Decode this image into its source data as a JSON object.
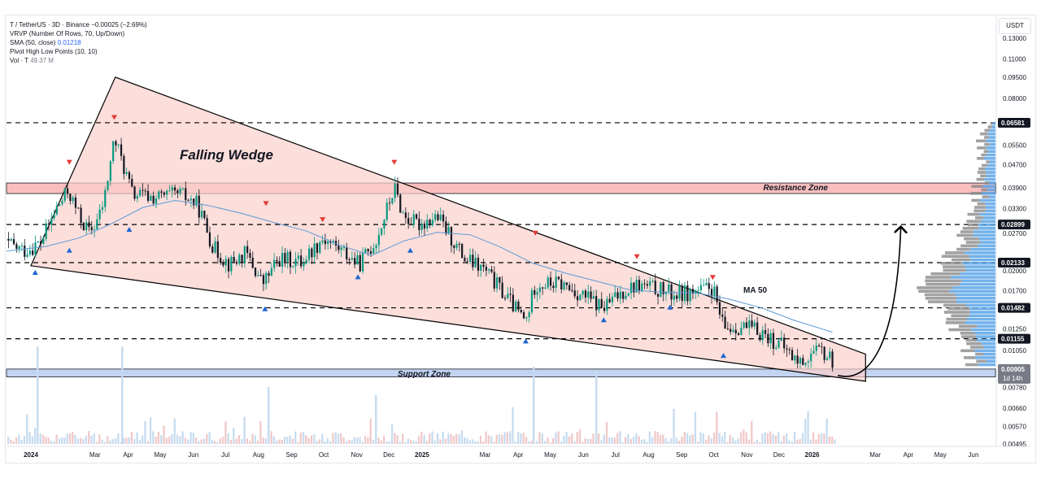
{
  "legend": {
    "symbol_line": "T / TetherUS · 3D · Binance",
    "change": "−0.00025 (−2.69%)",
    "vrvp": "VRVP (Number Of Rows, 70, Up/Down)",
    "sma_label": "SMA (50, close)",
    "sma_value": "0.01218",
    "pivot": "Pivot High Low Points (10, 10)",
    "vol_label": "Vol · T",
    "vol_value": "49.37 M"
  },
  "currency_label": "USDT",
  "colors": {
    "up": "#089981",
    "down": "#131722",
    "wedge_fill": "#fbd0cc",
    "resistance_fill": "#f7a8a8",
    "support_fill": "#b9cdf0",
    "sma": "#5b9bd5",
    "pivot_high": "#e53935",
    "pivot_low": "#1e64d2",
    "price_tag": "#131722",
    "last_price_tag": "#787b86"
  },
  "chart_data": {
    "type": "candlestick",
    "log_scale": true,
    "y_axis": {
      "ticks": [
        "0.13000",
        "0.11000",
        "0.09500",
        "0.08000",
        "0.05500",
        "0.04700",
        "0.03900",
        "0.03300",
        "0.02700",
        "0.02000",
        "0.01700",
        "0.01250",
        "0.01050",
        "0.00780",
        "0.00660",
        "0.00570",
        "0.00495"
      ],
      "tick_values": [
        0.13,
        0.11,
        0.095,
        0.08,
        0.055,
        0.047,
        0.039,
        0.033,
        0.027,
        0.02,
        0.017,
        0.0125,
        0.0105,
        0.0078,
        0.0066,
        0.0057,
        0.00495
      ]
    },
    "x_axis": {
      "ticks": [
        "2024",
        "Mar",
        "Apr",
        "May",
        "Jun",
        "Jul",
        "Aug",
        "Sep",
        "Oct",
        "Nov",
        "Dec",
        "2025",
        "Mar",
        "Apr",
        "May",
        "Jun",
        "Jul",
        "Aug",
        "Sep",
        "Oct",
        "Nov",
        "Dec",
        "2026",
        "Mar",
        "Apr",
        "May",
        "Jun"
      ],
      "tick_dates": [
        "2024-01-01",
        "2024-03-01",
        "2024-04-01",
        "2024-05-01",
        "2024-06-01",
        "2024-07-01",
        "2024-08-01",
        "2024-09-01",
        "2024-10-01",
        "2024-11-01",
        "2024-12-01",
        "2025-01-01",
        "2025-03-01",
        "2025-04-01",
        "2025-05-01",
        "2025-06-01",
        "2025-07-01",
        "2025-08-01",
        "2025-09-01",
        "2025-10-01",
        "2025-11-01",
        "2025-12-01",
        "2026-01-01",
        "2026-03-01",
        "2026-04-01",
        "2026-05-01",
        "2026-06-01"
      ]
    },
    "horizontal_levels": [
      {
        "label": "0.06581",
        "value": 0.06581
      },
      {
        "label": "0.02899",
        "value": 0.02899
      },
      {
        "label": "0.02133",
        "value": 0.02133
      },
      {
        "label": "0.01482",
        "value": 0.01482
      },
      {
        "label": "0.01155",
        "value": 0.01155
      },
      {
        "label": "0.00905",
        "value": 0.00905
      }
    ],
    "last_price": {
      "label": "0.00905",
      "countdown": "1d 14h"
    },
    "zones": {
      "resistance": {
        "label": "Resistance Zone",
        "low": 0.0372,
        "high": 0.0405
      },
      "support": {
        "label": "Support Zone",
        "low": 0.0085,
        "high": 0.00905
      }
    },
    "annotations": {
      "pattern": "Falling Wedge",
      "ma": "MA 50"
    },
    "wedge": {
      "upper": [
        {
          "date": "2024-01-01",
          "price": 0.0208
        },
        {
          "date": "2024-03-20",
          "price": 0.095
        },
        {
          "date": "2026-02-20",
          "price": 0.0102
        }
      ],
      "lower": [
        {
          "date": "2024-01-01",
          "price": 0.0208
        },
        {
          "date": "2026-02-20",
          "price": 0.0082
        }
      ]
    },
    "pivot_highs": [
      {
        "date": "2024-02-06",
        "price": 0.046
      },
      {
        "date": "2024-03-19",
        "price": 0.066
      },
      {
        "date": "2024-08-08",
        "price": 0.033
      },
      {
        "date": "2024-09-30",
        "price": 0.029
      },
      {
        "date": "2024-12-06",
        "price": 0.046
      },
      {
        "date": "2025-04-17",
        "price": 0.026
      },
      {
        "date": "2025-07-21",
        "price": 0.0215
      },
      {
        "date": "2025-09-30",
        "price": 0.0182
      }
    ],
    "pivot_lows": [
      {
        "date": "2024-01-05",
        "price": 0.0205
      },
      {
        "date": "2024-02-06",
        "price": 0.0245
      },
      {
        "date": "2024-04-02",
        "price": 0.029
      },
      {
        "date": "2024-08-07",
        "price": 0.0153
      },
      {
        "date": "2024-11-02",
        "price": 0.0198
      },
      {
        "date": "2024-12-21",
        "price": 0.0245
      },
      {
        "date": "2025-04-08",
        "price": 0.0118
      },
      {
        "date": "2025-06-20",
        "price": 0.014
      },
      {
        "date": "2025-08-21",
        "price": 0.0155
      },
      {
        "date": "2025-10-10",
        "price": 0.0105
      }
    ],
    "ohlc_outline": [
      [
        "2023-12-01",
        0.0255
      ],
      [
        "2023-12-25",
        0.0235
      ],
      [
        "2024-01-10",
        0.025
      ],
      [
        "2024-01-25",
        0.033
      ],
      [
        "2024-02-05",
        0.038
      ],
      [
        "2024-02-15",
        0.031
      ],
      [
        "2024-02-25",
        0.027
      ],
      [
        "2024-03-05",
        0.031
      ],
      [
        "2024-03-10",
        0.036
      ],
      [
        "2024-03-19",
        0.058
      ],
      [
        "2024-03-25",
        0.05
      ],
      [
        "2024-04-05",
        0.037
      ],
      [
        "2024-04-25",
        0.036
      ],
      [
        "2024-05-20",
        0.037
      ],
      [
        "2024-06-05",
        0.034
      ],
      [
        "2024-06-20",
        0.024
      ],
      [
        "2024-07-05",
        0.021
      ],
      [
        "2024-07-20",
        0.023
      ],
      [
        "2024-08-05",
        0.018
      ],
      [
        "2024-08-20",
        0.022
      ],
      [
        "2024-09-10",
        0.0215
      ],
      [
        "2024-09-30",
        0.026
      ],
      [
        "2024-10-15",
        0.024
      ],
      [
        "2024-11-03",
        0.021
      ],
      [
        "2024-11-20",
        0.026
      ],
      [
        "2024-12-06",
        0.039
      ],
      [
        "2024-12-15",
        0.031
      ],
      [
        "2024-12-28",
        0.029
      ],
      [
        "2025-01-15",
        0.031
      ],
      [
        "2025-02-10",
        0.022
      ],
      [
        "2025-03-01",
        0.02
      ],
      [
        "2025-03-25",
        0.0155
      ],
      [
        "2025-04-08",
        0.0132
      ],
      [
        "2025-04-17",
        0.018
      ],
      [
        "2025-05-10",
        0.018
      ],
      [
        "2025-05-30",
        0.0165
      ],
      [
        "2025-06-20",
        0.0148
      ],
      [
        "2025-07-10",
        0.0172
      ],
      [
        "2025-07-21",
        0.0178
      ],
      [
        "2025-08-10",
        0.0172
      ],
      [
        "2025-08-25",
        0.0165
      ],
      [
        "2025-09-20",
        0.017
      ],
      [
        "2025-09-30",
        0.0174
      ],
      [
        "2025-10-10",
        0.0125
      ],
      [
        "2025-10-25",
        0.0128
      ],
      [
        "2025-11-15",
        0.0122
      ],
      [
        "2025-12-05",
        0.0108
      ],
      [
        "2025-12-20",
        0.0095
      ],
      [
        "2026-01-01",
        0.0102
      ],
      [
        "2026-01-10",
        0.0104
      ],
      [
        "2026-01-22",
        0.0096
      ]
    ],
    "sma50": [
      [
        "2023-12-01",
        0.0232
      ],
      [
        "2024-01-15",
        0.0243
      ],
      [
        "2024-02-15",
        0.026
      ],
      [
        "2024-03-15",
        0.029
      ],
      [
        "2024-04-15",
        0.0333
      ],
      [
        "2024-05-15",
        0.0352
      ],
      [
        "2024-06-15",
        0.0338
      ],
      [
        "2024-07-15",
        0.0318
      ],
      [
        "2024-08-15",
        0.0295
      ],
      [
        "2024-09-15",
        0.0275
      ],
      [
        "2024-10-15",
        0.0246
      ],
      [
        "2024-11-15",
        0.0226
      ],
      [
        "2024-12-15",
        0.0254
      ],
      [
        "2025-01-15",
        0.0272
      ],
      [
        "2025-02-15",
        0.0267
      ],
      [
        "2025-03-15",
        0.0242
      ],
      [
        "2025-04-15",
        0.0212
      ],
      [
        "2025-05-15",
        0.0196
      ],
      [
        "2025-06-15",
        0.0183
      ],
      [
        "2025-07-15",
        0.0171
      ],
      [
        "2025-08-15",
        0.0168
      ],
      [
        "2025-09-15",
        0.0167
      ],
      [
        "2025-10-15",
        0.0159
      ],
      [
        "2025-11-15",
        0.0148
      ],
      [
        "2025-12-15",
        0.0134
      ],
      [
        "2026-01-20",
        0.01218
      ]
    ],
    "projection": {
      "from_date": "2026-01-25",
      "from_price": 0.0086,
      "to_date": "2026-03-25",
      "to_price": 0.0285
    },
    "volume": {
      "label": "Vol · T",
      "last": "49.37 M"
    }
  }
}
